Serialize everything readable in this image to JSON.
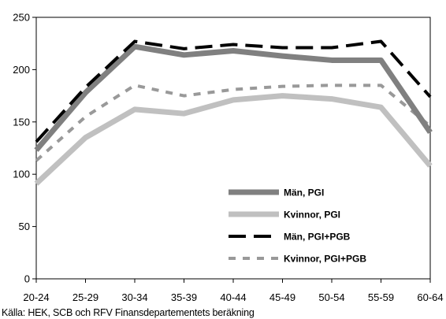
{
  "chart_data": {
    "type": "line",
    "title": "",
    "xlabel": "",
    "ylabel": "",
    "categories": [
      "20-24",
      "25-29",
      "30-34",
      "35-39",
      "40-44",
      "45-49",
      "50-54",
      "55-59",
      "60-64"
    ],
    "ylim": [
      0,
      250
    ],
    "yticks": [
      0,
      50,
      100,
      150,
      200,
      250
    ],
    "grid": false,
    "legend_position": "bottom-right",
    "series": [
      {
        "name": "Män, PGI",
        "color": "#808080",
        "style": "solid",
        "values": [
          123,
          178,
          222,
          214,
          218,
          213,
          209,
          209,
          140
        ]
      },
      {
        "name": "Kvinnor, PGI",
        "color": "#c0c0c0",
        "style": "solid",
        "values": [
          91,
          135,
          162,
          158,
          171,
          175,
          172,
          164,
          108
        ]
      },
      {
        "name": "Män, PGI+PGB",
        "color": "#000000",
        "style": "long-dash",
        "values": [
          131,
          183,
          227,
          220,
          224,
          221,
          221,
          227,
          174
        ]
      },
      {
        "name": "Kvinnor, PGI+PGB",
        "color": "#999999",
        "style": "short-dash",
        "values": [
          113,
          155,
          185,
          175,
          181,
          184,
          185,
          185,
          146
        ]
      }
    ]
  },
  "source_note": "Källa: HEK, SCB och RFV Finansdepartementets beräkning"
}
